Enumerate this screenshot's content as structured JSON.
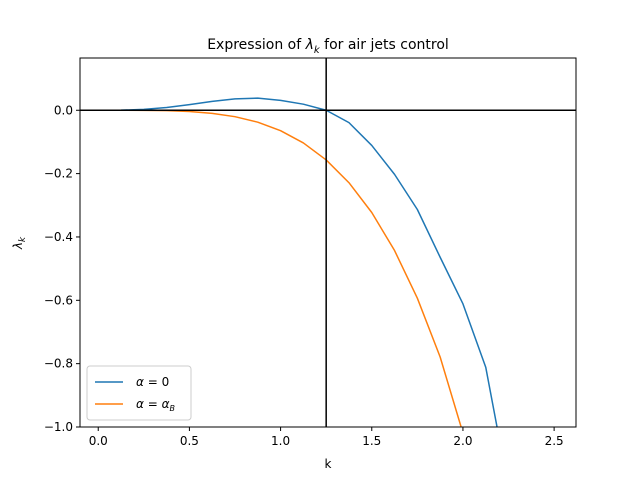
{
  "chart_data": {
    "type": "line",
    "title_prefix": "Expression of ",
    "title_symbol": "λ",
    "title_symbol_sub": "k",
    "title_suffix": " for air jets control",
    "xlabel": "k",
    "ylabel_symbol": "λ",
    "ylabel_sub": "k",
    "xlim": [
      -0.1,
      2.62
    ],
    "ylim": [
      -1.0,
      0.165
    ],
    "xticks": [
      0.0,
      0.5,
      1.0,
      1.5,
      2.0,
      2.5
    ],
    "xtick_labels": [
      "0.0",
      "0.5",
      "1.0",
      "1.5",
      "2.0",
      "2.5"
    ],
    "yticks": [
      0.0,
      -0.2,
      -0.4,
      -0.6,
      -0.8,
      -1.0
    ],
    "ytick_labels": [
      "0.0",
      "−0.2",
      "−0.4",
      "−0.6",
      "−0.8",
      "−1.0"
    ],
    "reference_lines": {
      "vertical_x": 1.25,
      "horizontal_y": 0.0
    },
    "grid": false,
    "legend_placement": "lower-left",
    "series": [
      {
        "name_symbol": "α",
        "name_rhs": "0",
        "name_rhs_sub": "",
        "color": "#1f77b4",
        "x": [
          0.0,
          0.125,
          0.25,
          0.375,
          0.5,
          0.625,
          0.75,
          0.875,
          1.0,
          1.125,
          1.25,
          1.375,
          1.5,
          1.625,
          1.75,
          1.875,
          2.0,
          2.125,
          2.187
        ],
        "y": [
          0.0,
          0.00037,
          0.0028,
          0.0087,
          0.0178,
          0.0279,
          0.0358,
          0.0382,
          0.0313,
          0.0192,
          0.0,
          -0.0391,
          -0.1111,
          -0.2025,
          -0.3133,
          -0.4641,
          -0.6111,
          -0.8112,
          -1.0
        ]
      },
      {
        "name_symbol": "α",
        "name_rhs": "α",
        "name_rhs_sub": "B",
        "color": "#ff7f0e",
        "x": [
          0.0,
          0.125,
          0.25,
          0.375,
          0.5,
          0.625,
          0.75,
          0.875,
          1.0,
          1.125,
          1.25,
          1.375,
          1.5,
          1.625,
          1.75,
          1.875,
          1.99
        ],
        "y": [
          0.0,
          -2e-05,
          -0.0002,
          -0.0013,
          -0.0039,
          -0.0097,
          -0.0203,
          -0.0377,
          -0.0644,
          -0.1031,
          -0.1568,
          -0.2288,
          -0.3228,
          -0.4429,
          -0.5933,
          -0.779,
          -1.0
        ]
      }
    ]
  }
}
